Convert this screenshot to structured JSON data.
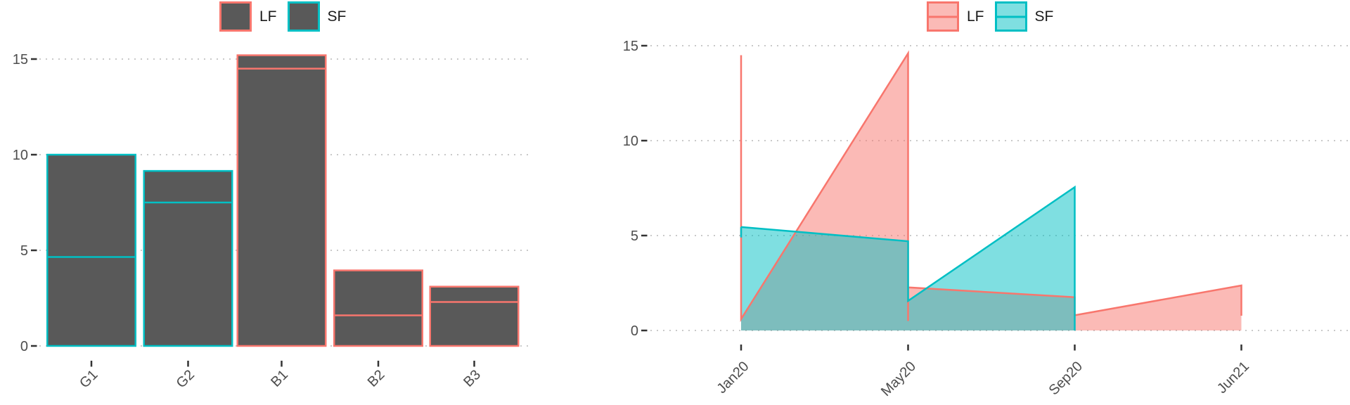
{
  "palette": {
    "salmon": "#F8766D",
    "teal": "#00BFC4",
    "bar_fill": "#595959",
    "salmon_fill": "rgba(248,118,109,0.5)",
    "teal_fill": "rgba(0,191,196,0.5)",
    "grid": "#C9C9C9",
    "tick": "#333333",
    "axis_text": "#4D4D4D",
    "legend_text": "#1A1A1A"
  },
  "left_legend": {
    "items": [
      {
        "label": "LF",
        "border": "#F8766D",
        "fill": "#595959"
      },
      {
        "label": "SF",
        "border": "#00BFC4",
        "fill": "#595959"
      }
    ]
  },
  "right_legend": {
    "items": [
      {
        "label": "LF",
        "border": "#F8766D",
        "fill": "rgba(248,118,109,0.5)"
      },
      {
        "label": "SF",
        "border": "#00BFC4",
        "fill": "rgba(0,191,196,0.5)"
      }
    ]
  },
  "chart_data": [
    {
      "type": "bar",
      "title": "",
      "categories": [
        "G1",
        "G2",
        "B1",
        "B2",
        "B3"
      ],
      "groups": [
        "SF",
        "SF",
        "LF",
        "LF",
        "LF"
      ],
      "totals": [
        10.0,
        9.15,
        15.2,
        3.95,
        3.1
      ],
      "dividers": [
        4.65,
        7.5,
        14.5,
        1.6,
        2.3
      ],
      "bar_fill": "#595959",
      "group_colors": {
        "LF": "#F8766D",
        "SF": "#00BFC4"
      },
      "yticks": [
        0,
        5,
        10,
        15
      ],
      "ylim": [
        0,
        15.2
      ],
      "grid": "dotted",
      "legend": [
        "LF",
        "SF"
      ],
      "legend_position": "top"
    },
    {
      "type": "area",
      "title": "",
      "x_categories": [
        "Jan20",
        "May20",
        "Sep20",
        "Jun21"
      ],
      "yticks": [
        0,
        5,
        10,
        15
      ],
      "ylim": [
        0,
        15
      ],
      "grid": "dotted",
      "legend": [
        "LF",
        "SF"
      ],
      "legend_position": "top",
      "series": [
        {
          "name": "LF",
          "color": "#F8766D",
          "fill": "rgba(248,118,109,0.5)",
          "points": [
            [
              "Jan20",
              14.5
            ],
            [
              "Jan20",
              0.6
            ],
            [
              "May20",
              14.6
            ],
            [
              "May20",
              0.5
            ],
            [
              "May20",
              2.27
            ],
            [
              "Sep20",
              1.75
            ],
            [
              "Sep20",
              0.8
            ],
            [
              "Jun21",
              2.37
            ],
            [
              "Jun21",
              0.78
            ]
          ]
        },
        {
          "name": "SF",
          "color": "#00BFC4",
          "fill": "rgba(0,191,196,0.5)",
          "points": [
            [
              "Jan20",
              5.45
            ],
            [
              "May20",
              4.7
            ],
            [
              "May20",
              1.56
            ],
            [
              "Sep20",
              7.55
            ],
            [
              "Sep20",
              0
            ]
          ],
          "edge_marks": [
            {
              "x": "Jan20",
              "from": 5.45,
              "to": 4.9
            }
          ]
        }
      ]
    }
  ]
}
